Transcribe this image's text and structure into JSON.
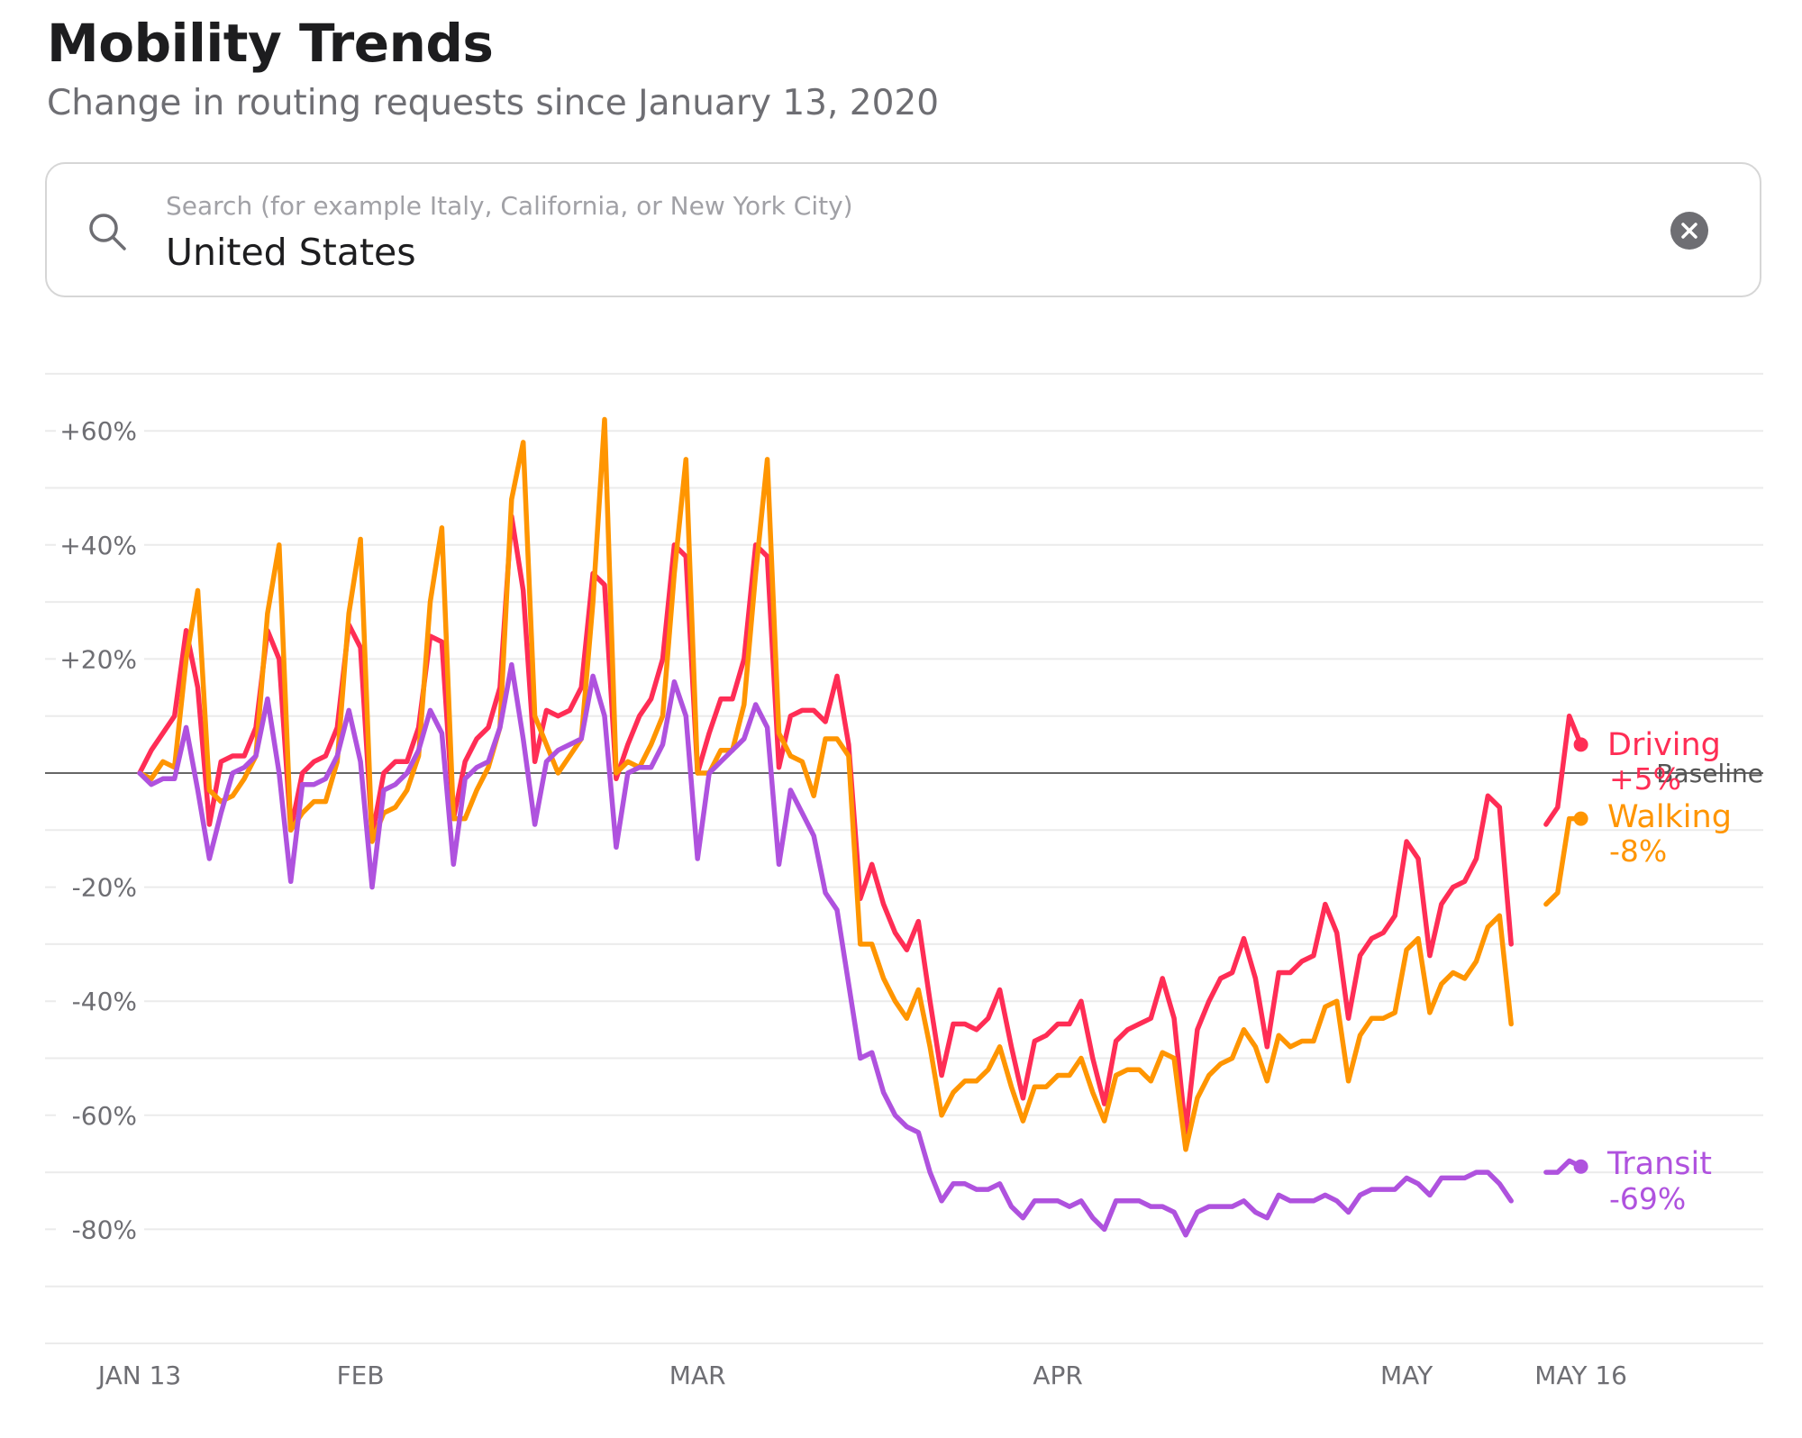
{
  "header": {
    "title": "Mobility Trends",
    "subtitle": "Change in routing requests since January 13, 2020"
  },
  "search": {
    "placeholder": "Search (for example Italy, California, or New York City)",
    "value": "United States",
    "icon": "search-icon",
    "clear_icon": "clear-circle-icon"
  },
  "chart_data": {
    "type": "line",
    "title": "",
    "xlabel": "",
    "ylabel": "",
    "ylim": [
      -100,
      70
    ],
    "grid": true,
    "baseline": {
      "value": 0,
      "label": "Baseline"
    },
    "y_ticks": [
      {
        "value": 60,
        "label": "+60%"
      },
      {
        "value": 40,
        "label": "+40%"
      },
      {
        "value": 20,
        "label": "+20%"
      },
      {
        "value": -20,
        "label": "-20%"
      },
      {
        "value": -40,
        "label": "-40%"
      },
      {
        "value": -60,
        "label": "-60%"
      },
      {
        "value": -80,
        "label": "-80%"
      }
    ],
    "x_ticks": [
      {
        "date": "2020-01-13",
        "label": "JAN 13"
      },
      {
        "date": "2020-02-01",
        "label": "FEB"
      },
      {
        "date": "2020-03-01",
        "label": "MAR"
      },
      {
        "date": "2020-04-01",
        "label": "APR"
      },
      {
        "date": "2020-05-01",
        "label": "MAY"
      },
      {
        "date": "2020-05-16",
        "label": "MAY 16"
      }
    ],
    "x": [
      "2020-01-13",
      "2020-01-14",
      "2020-01-15",
      "2020-01-16",
      "2020-01-17",
      "2020-01-18",
      "2020-01-19",
      "2020-01-20",
      "2020-01-21",
      "2020-01-22",
      "2020-01-23",
      "2020-01-24",
      "2020-01-25",
      "2020-01-26",
      "2020-01-27",
      "2020-01-28",
      "2020-01-29",
      "2020-01-30",
      "2020-01-31",
      "2020-02-01",
      "2020-02-02",
      "2020-02-03",
      "2020-02-04",
      "2020-02-05",
      "2020-02-06",
      "2020-02-07",
      "2020-02-08",
      "2020-02-09",
      "2020-02-10",
      "2020-02-11",
      "2020-02-12",
      "2020-02-13",
      "2020-02-14",
      "2020-02-15",
      "2020-02-16",
      "2020-02-17",
      "2020-02-18",
      "2020-02-19",
      "2020-02-20",
      "2020-02-21",
      "2020-02-22",
      "2020-02-23",
      "2020-02-24",
      "2020-02-25",
      "2020-02-26",
      "2020-02-27",
      "2020-02-28",
      "2020-02-29",
      "2020-03-01",
      "2020-03-02",
      "2020-03-03",
      "2020-03-04",
      "2020-03-05",
      "2020-03-06",
      "2020-03-07",
      "2020-03-08",
      "2020-03-09",
      "2020-03-10",
      "2020-03-11",
      "2020-03-12",
      "2020-03-13",
      "2020-03-14",
      "2020-03-15",
      "2020-03-16",
      "2020-03-17",
      "2020-03-18",
      "2020-03-19",
      "2020-03-20",
      "2020-03-21",
      "2020-03-22",
      "2020-03-23",
      "2020-03-24",
      "2020-03-25",
      "2020-03-26",
      "2020-03-27",
      "2020-03-28",
      "2020-03-29",
      "2020-03-30",
      "2020-03-31",
      "2020-04-01",
      "2020-04-02",
      "2020-04-03",
      "2020-04-04",
      "2020-04-05",
      "2020-04-06",
      "2020-04-07",
      "2020-04-08",
      "2020-04-09",
      "2020-04-10",
      "2020-04-11",
      "2020-04-12",
      "2020-04-13",
      "2020-04-14",
      "2020-04-15",
      "2020-04-16",
      "2020-04-17",
      "2020-04-18",
      "2020-04-19",
      "2020-04-20",
      "2020-04-21",
      "2020-04-22",
      "2020-04-23",
      "2020-04-24",
      "2020-04-25",
      "2020-04-26",
      "2020-04-27",
      "2020-04-28",
      "2020-04-29",
      "2020-04-30",
      "2020-05-01",
      "2020-05-02",
      "2020-05-03",
      "2020-05-04",
      "2020-05-05",
      "2020-05-06",
      "2020-05-07",
      "2020-05-08",
      "2020-05-09",
      "2020-05-10",
      "2020-05-11",
      "2020-05-12",
      "2020-05-13",
      "2020-05-14",
      "2020-05-15",
      "2020-05-16"
    ],
    "series": [
      {
        "name": "Driving",
        "latest_label": "+5%",
        "color": "#ff2d55",
        "values": [
          0,
          4,
          7,
          10,
          25,
          15,
          -9,
          2,
          3,
          3,
          8,
          25,
          20,
          -10,
          0,
          2,
          3,
          8,
          26,
          22,
          -11,
          0,
          2,
          2,
          8,
          24,
          23,
          -8,
          2,
          6,
          8,
          15,
          45,
          32,
          2,
          11,
          10,
          11,
          15,
          35,
          33,
          -1,
          5,
          10,
          13,
          20,
          40,
          38,
          0,
          7,
          13,
          13,
          20,
          40,
          38,
          1,
          10,
          11,
          11,
          9,
          17,
          5,
          -22,
          -16,
          -23,
          -28,
          -31,
          -26,
          -40,
          -53,
          -44,
          -44,
          -45,
          -43,
          -38,
          -48,
          -57,
          -47,
          -46,
          -44,
          -44,
          -40,
          -50,
          -58,
          -47,
          -45,
          -44,
          -43,
          -36,
          -43,
          -63,
          -45,
          -40,
          -36,
          -35,
          -29,
          -36,
          -48,
          -35,
          -35,
          -33,
          -32,
          -23,
          -28,
          -43,
          -32,
          -29,
          -28,
          -25,
          -12,
          -15,
          -32,
          -23,
          -20,
          -19,
          -15,
          -4,
          -6,
          -30,
          null,
          null,
          -9,
          -6,
          10,
          5
        ]
      },
      {
        "name": "Walking",
        "latest_label": "-8%",
        "color": "#ff9500",
        "values": [
          0,
          -1,
          2,
          1,
          20,
          32,
          -3,
          -5,
          -4,
          -1,
          3,
          28,
          40,
          -10,
          -7,
          -5,
          -5,
          2,
          28,
          41,
          -12,
          -7,
          -6,
          -3,
          3,
          30,
          43,
          -8,
          -8,
          -3,
          1,
          8,
          48,
          58,
          10,
          5,
          0,
          3,
          6,
          30,
          62,
          0,
          2,
          1,
          5,
          10,
          35,
          55,
          0,
          0,
          4,
          4,
          12,
          35,
          55,
          7,
          3,
          2,
          -4,
          6,
          6,
          3,
          -30,
          -30,
          -36,
          -40,
          -43,
          -38,
          -48,
          -60,
          -56,
          -54,
          -54,
          -52,
          -48,
          -55,
          -61,
          -55,
          -55,
          -53,
          -53,
          -50,
          -56,
          -61,
          -53,
          -52,
          -52,
          -54,
          -49,
          -50,
          -66,
          -57,
          -53,
          -51,
          -50,
          -45,
          -48,
          -54,
          -46,
          -48,
          -47,
          -47,
          -41,
          -40,
          -54,
          -46,
          -43,
          -43,
          -42,
          -31,
          -29,
          -42,
          -37,
          -35,
          -36,
          -33,
          -27,
          -25,
          -44,
          null,
          null,
          -23,
          -21,
          -8,
          -8
        ]
      },
      {
        "name": "Transit",
        "latest_label": "-69%",
        "color": "#af52de",
        "values": [
          0,
          -2,
          -1,
          -1,
          8,
          -3,
          -15,
          -7,
          0,
          1,
          3,
          13,
          0,
          -19,
          -2,
          -2,
          -1,
          3,
          11,
          2,
          -20,
          -3,
          -2,
          0,
          4,
          11,
          7,
          -16,
          -1,
          1,
          2,
          8,
          19,
          6,
          -9,
          2,
          4,
          5,
          6,
          17,
          10,
          -13,
          0,
          1,
          1,
          5,
          16,
          10,
          -15,
          0,
          2,
          4,
          6,
          12,
          8,
          -16,
          -3,
          -7,
          -11,
          -21,
          -24,
          -37,
          -50,
          -49,
          -56,
          -60,
          -62,
          -63,
          -70,
          -75,
          -72,
          -72,
          -73,
          -73,
          -72,
          -76,
          -78,
          -75,
          -75,
          -75,
          -76,
          -75,
          -78,
          -80,
          -75,
          -75,
          -75,
          -76,
          -76,
          -77,
          -81,
          -77,
          -76,
          -76,
          -76,
          -75,
          -77,
          -78,
          -74,
          -75,
          -75,
          -75,
          -74,
          -75,
          -77,
          -74,
          -73,
          -73,
          -73,
          -71,
          -72,
          -74,
          -71,
          -71,
          -71,
          -70,
          -70,
          -72,
          -75,
          null,
          null,
          -70,
          -70,
          -68,
          -69
        ]
      }
    ]
  }
}
